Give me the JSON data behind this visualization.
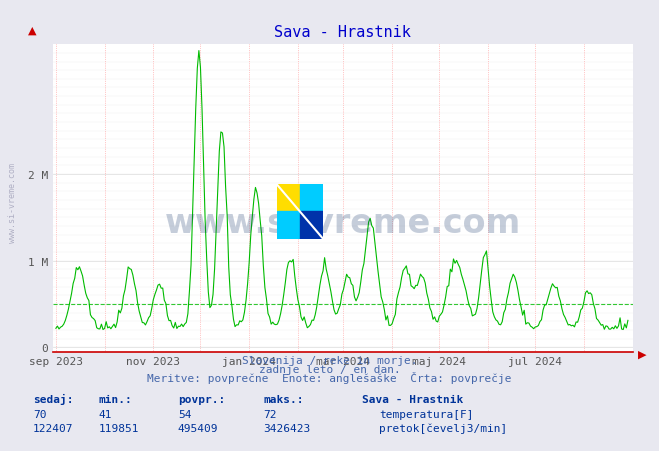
{
  "title": "Sava - Hrastnik",
  "title_color": "#0000cc",
  "bg_color": "#e8e8f0",
  "plot_bg_color": "#ffffff",
  "grid_color_major": "#dddddd",
  "grid_color_minor": "#eeeeee",
  "x_label_color": "#555555",
  "y_label_color": "#555555",
  "axis_color": "#cc0000",
  "watermark_text": "www.si-vreme.com",
  "watermark_color": "#1a3a6e",
  "watermark_alpha": 0.25,
  "sub_text1": "Slovenija / reke in morje.",
  "sub_text2": "zadnje leto / en dan.",
  "sub_text3": "Meritve: povprečne  Enote: anglešaške  Črta: povprečje",
  "sub_text_color": "#4466aa",
  "flow_color": "#00bb00",
  "avg_line_color": "#00bb00",
  "avg_line_style": "--",
  "avg_value": 495409,
  "y_max": 3426423,
  "y_ticks": [
    0,
    1000000,
    2000000
  ],
  "y_tick_labels": [
    "0",
    "1 M",
    "2 M"
  ],
  "x_ticks": [
    "sep 2023",
    "nov 2023",
    "jan 2024",
    "mar 2024",
    "maj 2024",
    "jul 2024"
  ],
  "footer_label_color": "#003399",
  "footer_bold": true,
  "sed_sedaj": 122407,
  "sed_min": 119851,
  "sed_povpr": 495409,
  "sed_maks": 3426423,
  "temp_sedaj": 70,
  "temp_min": 41,
  "temp_povpr": 54,
  "temp_maks": 72
}
